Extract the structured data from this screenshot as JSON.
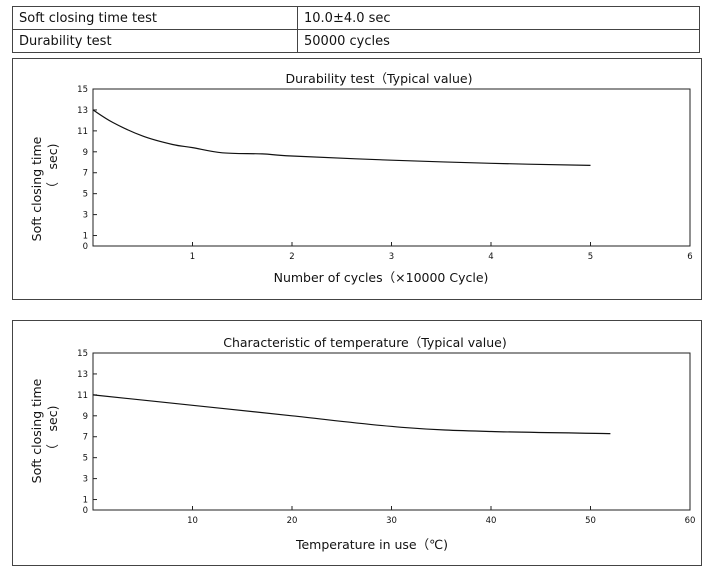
{
  "spec_table": {
    "rows": [
      {
        "name": "Soft closing time test",
        "value": "10.0±4.0 sec"
      },
      {
        "name": "Durability test",
        "value": "50000 cycles"
      }
    ]
  },
  "chart_data": [
    {
      "type": "line",
      "title": "Durability test（Typical value)",
      "xlabel": "Number of cycles（×10000 Cycle)",
      "ylabel": "Soft closing time",
      "ylabel_unit": "（　sec)",
      "xlim": [
        0,
        6
      ],
      "ylim": [
        0,
        15
      ],
      "xticks": [
        1,
        2,
        3,
        4,
        5,
        6
      ],
      "yticks": [
        0,
        1,
        3,
        5,
        7,
        9,
        11,
        13,
        15
      ],
      "grid": false,
      "series": [
        {
          "x": [
            0,
            0.2,
            0.5,
            0.8,
            1.0,
            1.3,
            1.7,
            2.0,
            3.0,
            4.0,
            5.0
          ],
          "y": [
            13,
            11.8,
            10.5,
            9.7,
            9.4,
            8.9,
            8.8,
            8.6,
            8.2,
            7.9,
            7.7
          ]
        }
      ]
    },
    {
      "type": "line",
      "title": "Characteristic of temperature（Typical value)",
      "xlabel": "Temperature in use（℃)",
      "ylabel": "Soft closing time",
      "ylabel_unit": "（　sec)",
      "xlim": [
        0,
        60
      ],
      "ylim": [
        0,
        15
      ],
      "xticks": [
        10,
        20,
        30,
        40,
        50,
        60
      ],
      "yticks": [
        0,
        1,
        3,
        5,
        7,
        9,
        11,
        13,
        15
      ],
      "grid": false,
      "series": [
        {
          "x": [
            0,
            10,
            20,
            31,
            40,
            52
          ],
          "y": [
            11,
            10,
            9,
            7.9,
            7.5,
            7.3
          ]
        }
      ]
    }
  ]
}
